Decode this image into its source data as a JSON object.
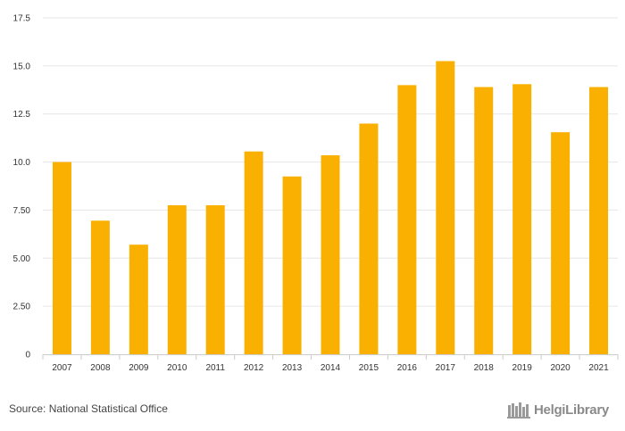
{
  "chart_data": {
    "type": "bar",
    "categories": [
      "2007",
      "2008",
      "2009",
      "2010",
      "2011",
      "2012",
      "2013",
      "2014",
      "2015",
      "2016",
      "2017",
      "2018",
      "2019",
      "2020",
      "2021"
    ],
    "values": [
      10.0,
      6.95,
      5.7,
      7.75,
      7.75,
      10.55,
      9.25,
      10.35,
      12.0,
      14.0,
      15.25,
      13.9,
      14.05,
      11.55,
      13.9
    ],
    "yticks": [
      "0",
      "2.50",
      "5.00",
      "7.50",
      "10.0",
      "12.5",
      "15.0",
      "17.5"
    ],
    "ylim": [
      0,
      17.5
    ],
    "grid": true,
    "title": "",
    "xlabel": "",
    "ylabel": "",
    "colors": {
      "bar": "#F9B000",
      "grid": "#e6e6e6",
      "axis": "#cccccc"
    }
  },
  "footer": {
    "source": "Source: National Statistical Office",
    "brand": "HelgiLibrary",
    "brand_icon": "library-logo-icon"
  }
}
